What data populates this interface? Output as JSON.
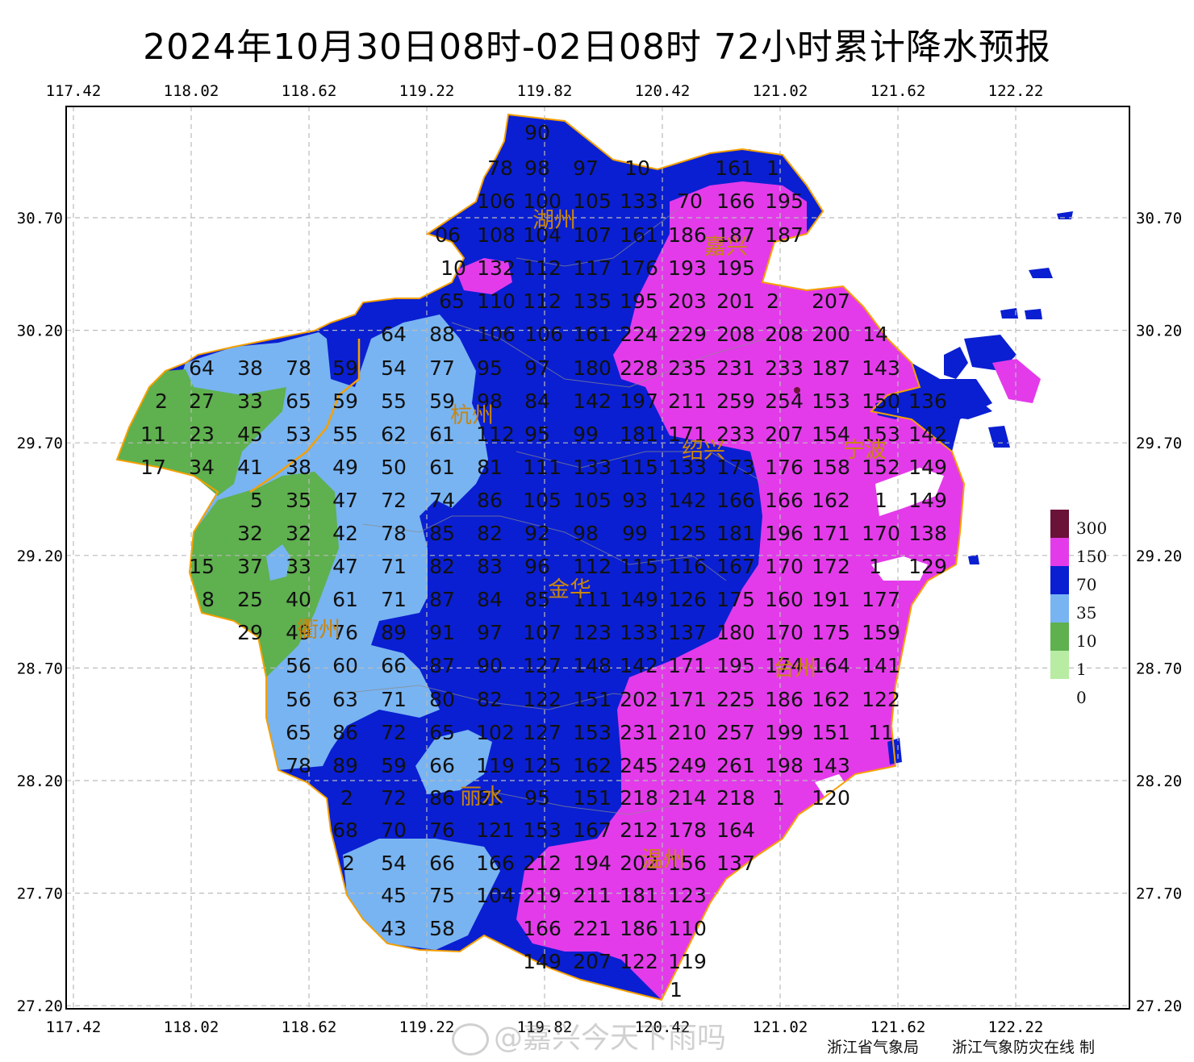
{
  "title": "2024年10月30日08时-02日08时  72小时累计降水预报",
  "credit_agency": "浙江省气象局",
  "credit_platform": "浙江气象防灾在线  制",
  "watermark": "@嘉兴今天下雨吗",
  "colors": {
    "c300": "#6b1238",
    "c150": "#e33bea",
    "c70": "#0a1fd1",
    "c35": "#78b4f2",
    "c10": "#5fb04f",
    "c1": "#b8eca3",
    "c0": "#ffffff",
    "border_city": "#f5a000",
    "grid": "#bbbbbb"
  },
  "axes": {
    "x_ticks": [
      "117.42",
      "118.02",
      "118.62",
      "119.22",
      "119.82",
      "120.42",
      "121.02",
      "121.62",
      "122.22"
    ],
    "y_ticks": [
      "30.70",
      "30.20",
      "29.70",
      "29.20",
      "28.70",
      "28.20",
      "27.70",
      "27.20"
    ]
  },
  "legend": [
    {
      "label": "300",
      "color": "#6b1238"
    },
    {
      "label": "150",
      "color": "#e33bea"
    },
    {
      "label": "70",
      "color": "#0a1fd1"
    },
    {
      "label": "35",
      "color": "#78b4f2"
    },
    {
      "label": "10",
      "color": "#5fb04f"
    },
    {
      "label": "1",
      "color": "#b8eca3"
    },
    {
      "label": "0",
      "color": "#ffffff"
    }
  ],
  "cities": [
    "湖州",
    "嘉兴",
    "杭州",
    "绍兴",
    "宁波",
    "衢州",
    "金华",
    "台州",
    "丽水",
    "温州"
  ],
  "grid_values": [
    [
      "90"
    ],
    [
      "78",
      "98",
      "97",
      "10",
      "161",
      "1"
    ],
    [
      "106",
      "100",
      "105",
      "133",
      "70",
      "166",
      "195"
    ],
    [
      "06",
      "108",
      "104",
      "107",
      "161",
      "186",
      "187",
      "187"
    ],
    [
      "10",
      "132",
      "112",
      "117",
      "176",
      "193",
      "195"
    ],
    [
      "65",
      "110",
      "112",
      "135",
      "195",
      "203",
      "201",
      "2",
      "207"
    ],
    [
      "64",
      "88",
      "106",
      "106",
      "161",
      "224",
      "229",
      "208",
      "208",
      "200",
      "14"
    ],
    [
      "64",
      "38",
      "78",
      "59",
      "54",
      "77",
      "95",
      "97",
      "180",
      "228",
      "235",
      "231",
      "233",
      "187",
      "143"
    ],
    [
      "2",
      "27",
      "33",
      "65",
      "59",
      "55",
      "59",
      "98",
      "84",
      "142",
      "197",
      "211",
      "259",
      "254",
      "153",
      "150",
      "136"
    ],
    [
      "11",
      "23",
      "45",
      "53",
      "55",
      "62",
      "61",
      "112",
      "95",
      "99",
      "181",
      "171",
      "233",
      "207",
      "154",
      "153",
      "142"
    ],
    [
      "17",
      "34",
      "41",
      "38",
      "49",
      "50",
      "61",
      "81",
      "111",
      "133",
      "115",
      "133",
      "173",
      "176",
      "158",
      "152",
      "149"
    ],
    [
      "5",
      "35",
      "47",
      "72",
      "74",
      "86",
      "105",
      "105",
      "93",
      "142",
      "166",
      "166",
      "162",
      "1",
      "149"
    ],
    [
      "32",
      "32",
      "42",
      "78",
      "85",
      "82",
      "92",
      "98",
      "99",
      "125",
      "181",
      "196",
      "171",
      "170",
      "138"
    ],
    [
      "15",
      "37",
      "33",
      "47",
      "71",
      "82",
      "83",
      "96",
      "112",
      "115",
      "116",
      "167",
      "170",
      "172",
      "1",
      "129"
    ],
    [
      "8",
      "25",
      "40",
      "61",
      "71",
      "87",
      "84",
      "85",
      "111",
      "149",
      "126",
      "175",
      "160",
      "191",
      "177"
    ],
    [
      "29",
      "49",
      "76",
      "89",
      "91",
      "97",
      "107",
      "123",
      "133",
      "137",
      "180",
      "170",
      "175",
      "159"
    ],
    [
      "56",
      "60",
      "66",
      "87",
      "90",
      "127",
      "148",
      "142",
      "171",
      "195",
      "174",
      "164",
      "141"
    ],
    [
      "56",
      "63",
      "71",
      "80",
      "82",
      "122",
      "151",
      "202",
      "171",
      "225",
      "186",
      "162",
      "122"
    ],
    [
      "65",
      "86",
      "72",
      "65",
      "102",
      "127",
      "153",
      "231",
      "210",
      "257",
      "199",
      "151",
      "11"
    ],
    [
      "78",
      "89",
      "59",
      "66",
      "119",
      "125",
      "162",
      "245",
      "249",
      "261",
      "198",
      "143"
    ],
    [
      "2",
      "72",
      "86",
      "86",
      "95",
      "151",
      "218",
      "214",
      "218",
      "1",
      "120"
    ],
    [
      "68",
      "70",
      "76",
      "121",
      "153",
      "167",
      "212",
      "178",
      "164"
    ],
    [
      "2",
      "54",
      "66",
      "166",
      "212",
      "194",
      "202",
      "156",
      "137"
    ],
    [
      "45",
      "75",
      "104",
      "219",
      "211",
      "181",
      "123"
    ],
    [
      "43",
      "58",
      "166",
      "221",
      "186",
      "110"
    ],
    [
      "149",
      "207",
      "122",
      "119"
    ],
    [
      "1"
    ]
  ]
}
